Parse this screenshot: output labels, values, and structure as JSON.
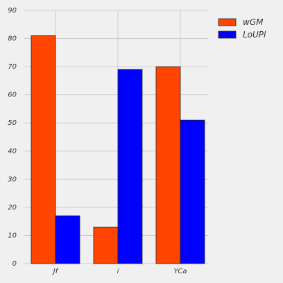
{
  "chart_data": {
    "type": "bar",
    "categories": [
      "Jf",
      "i",
      "YCa"
    ],
    "series": [
      {
        "name": "wGM",
        "values": [
          81,
          13,
          70
        ],
        "color": "#ff4500"
      },
      {
        "name": "LoUPl",
        "values": [
          17,
          69,
          51
        ],
        "color": "#0000ff"
      }
    ],
    "ylim": [
      0,
      90
    ],
    "yticks": [
      0,
      10,
      20,
      30,
      40,
      50,
      60,
      70,
      80,
      90
    ],
    "grid": true,
    "legend_position": "top-right",
    "title": "",
    "xlabel": "",
    "ylabel": ""
  }
}
